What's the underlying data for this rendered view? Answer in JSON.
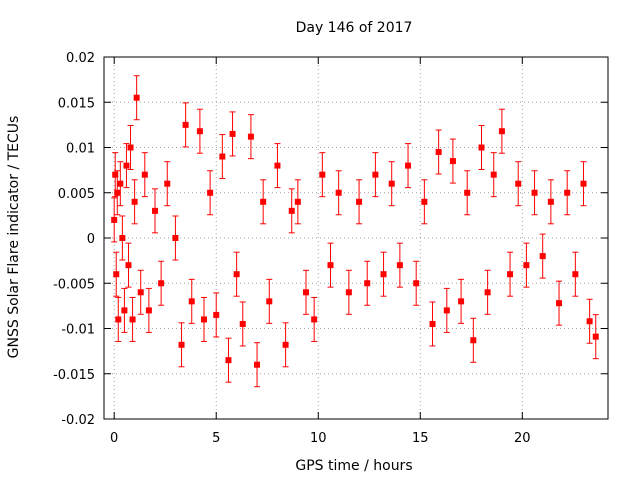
{
  "chart_data": {
    "type": "scatter",
    "title": "Day 146 of 2017",
    "xlabel": "GPS time / hours",
    "ylabel": "GNSS Solar Flare indicator / TECUs",
    "xlim": [
      -0.5,
      24.2
    ],
    "ylim": [
      -0.02,
      0.02
    ],
    "x_ticks": [
      0,
      5,
      10,
      15,
      20
    ],
    "x_tick_labels": [
      "0",
      "5",
      "10",
      "15",
      "20"
    ],
    "y_ticks": [
      -0.02,
      -0.015,
      -0.01,
      -0.005,
      0,
      0.005,
      0.01,
      0.015,
      0.02
    ],
    "y_tick_labels": [
      "-0.02",
      "-0.015",
      "-0.01",
      "-0.005",
      "0",
      "0.005",
      "0.01",
      "0.015",
      "0.02"
    ],
    "grid": true,
    "series_color": "#ff0000",
    "marker": "filled-square",
    "error_bars": true,
    "series": [
      {
        "x": [
          0.0,
          0.05,
          0.1,
          0.15,
          0.2,
          0.3,
          0.4,
          0.5,
          0.6,
          0.7,
          0.8,
          0.9,
          1.0,
          1.1,
          1.3,
          1.5,
          1.7,
          2.0,
          2.3,
          2.6,
          3.0,
          3.3,
          3.5,
          3.8,
          4.2,
          4.4,
          4.7,
          5.0,
          5.3,
          5.6,
          5.8,
          6.0,
          6.3,
          6.7,
          7.0,
          7.3,
          7.6,
          8.0,
          8.4,
          8.7,
          9.0,
          9.4,
          9.8,
          10.2,
          10.6,
          11.0,
          11.5,
          12.0,
          12.4,
          12.8,
          13.2,
          13.6,
          14.0,
          14.4,
          14.8,
          15.2,
          15.6,
          15.9,
          16.3,
          16.6,
          17.0,
          17.3,
          17.6,
          18.0,
          18.3,
          18.6,
          19.0,
          19.4,
          19.8,
          20.2,
          20.6,
          21.0,
          21.4,
          21.8,
          22.2,
          22.6,
          23.0,
          23.3,
          23.6
        ],
        "y": [
          0.002,
          0.007,
          -0.004,
          0.005,
          -0.009,
          0.006,
          0.0,
          -0.008,
          0.008,
          -0.003,
          0.01,
          -0.009,
          0.004,
          0.0155,
          -0.006,
          0.007,
          -0.008,
          0.003,
          -0.005,
          0.006,
          0.0,
          -0.0118,
          0.0125,
          -0.007,
          0.0118,
          -0.009,
          0.005,
          -0.0085,
          0.009,
          -0.0135,
          0.0115,
          -0.004,
          -0.0095,
          0.0112,
          -0.014,
          0.004,
          -0.007,
          0.008,
          -0.0118,
          0.003,
          0.004,
          -0.006,
          -0.009,
          0.007,
          -0.003,
          0.005,
          -0.006,
          0.004,
          -0.005,
          0.007,
          -0.004,
          0.006,
          -0.003,
          0.008,
          -0.005,
          0.004,
          -0.0095,
          0.0095,
          -0.008,
          0.0085,
          -0.007,
          0.005,
          -0.0113,
          0.01,
          -0.006,
          0.007,
          0.0118,
          -0.004,
          0.006,
          -0.003,
          0.005,
          -0.002,
          0.004,
          -0.0072,
          0.005,
          -0.004,
          0.006,
          -0.0092,
          -0.0109
        ]
      }
    ]
  }
}
